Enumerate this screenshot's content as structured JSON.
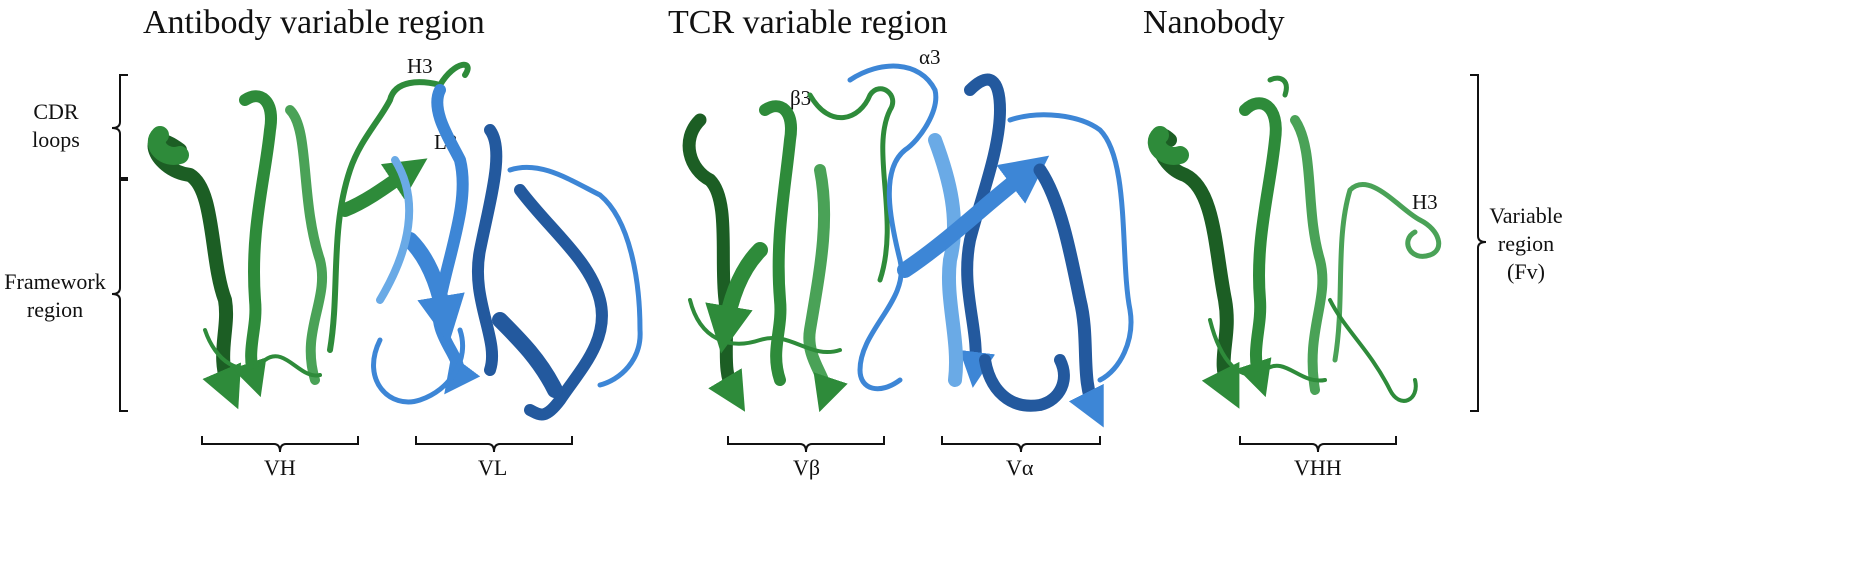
{
  "titles": {
    "antibody": "Antibody variable region",
    "tcr": "TCR variable region",
    "nanobody": "Nanobody"
  },
  "left_labels": {
    "cdr_line1": "CDR",
    "cdr_line2": "loops",
    "framework_line1": "Framework",
    "framework_line2": "region"
  },
  "right_label": {
    "line1": "Variable",
    "line2": "region",
    "line3": "(Fv)"
  },
  "loop_labels": {
    "h3": "H3",
    "l3": "L3",
    "beta3": "β3",
    "alpha3": "α3",
    "nano_h3": "H3"
  },
  "domain_labels": {
    "vh": "VH",
    "vl": "VL",
    "vbeta": "Vβ",
    "valpha": "Vα",
    "vhh": "VHH"
  },
  "colors": {
    "heavy_green": "#2e8b3a",
    "dark_green": "#1c5e24",
    "light_green": "#4aa257",
    "light_blue": "#3d86d6",
    "dark_blue": "#23599e",
    "pale_blue": "#6aaae6"
  }
}
